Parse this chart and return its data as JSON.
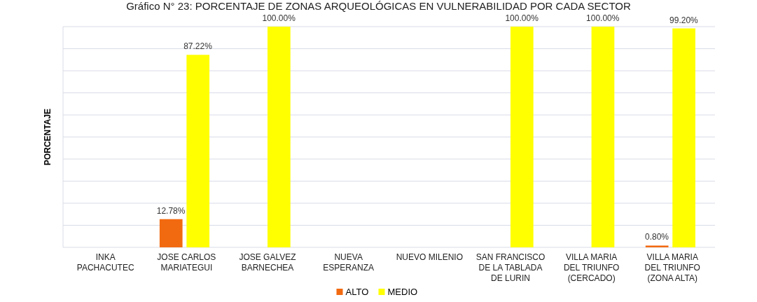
{
  "chart_data": {
    "type": "bar",
    "title": "Gráfico N° 23: PORCENTAJE DE ZONAS ARQUEOLÓGICAS EN VULNERABILIDAD POR CADA SECTOR",
    "ylabel": "PORCENTAJE",
    "categories": [
      "INKA PACHACUTEC",
      "JOSE CARLOS MARIATEGUI",
      "JOSE GALVEZ BARNECHEA",
      "NUEVA ESPERANZA",
      "NUEVO MILENIO",
      "SAN FRANCISCO DE LA TABLADA DE LURIN",
      "VILLA MARIA DEL TRIUNFO (CERCADO)",
      "VILLA MARIA DEL TRIUNFO (ZONA ALTA)"
    ],
    "series": [
      {
        "name": "ALTO",
        "color": "#f26a10",
        "values": [
          0,
          12.78,
          0,
          0,
          0,
          0,
          0,
          0.8
        ],
        "value_labels": [
          null,
          "12.78%",
          null,
          null,
          null,
          null,
          null,
          "0.80%"
        ]
      },
      {
        "name": "MEDIO",
        "color": "#ffff00",
        "values": [
          0,
          87.22,
          100,
          0,
          0,
          100,
          100,
          99.2
        ],
        "value_labels": [
          null,
          "87.22%",
          "100.00%",
          null,
          null,
          "100.00%",
          "100.00%",
          "99.20%"
        ]
      }
    ],
    "ylim": [
      0,
      100
    ],
    "yticks": [
      {
        "value": 0,
        "label": null
      },
      {
        "value": 10,
        "label": null
      },
      {
        "value": 20,
        "label": null
      },
      {
        "value": 30,
        "label": null
      },
      {
        "value": 40,
        "label": null
      },
      {
        "value": 50,
        "label": null
      },
      {
        "value": 60,
        "label": null
      },
      {
        "value": 70,
        "label": null
      },
      {
        "value": 80,
        "label": null
      },
      {
        "value": 90,
        "label": null
      },
      {
        "value": 100,
        "label": null
      }
    ],
    "tick_labels": "x",
    "grid": "y",
    "legend": "bottom"
  }
}
